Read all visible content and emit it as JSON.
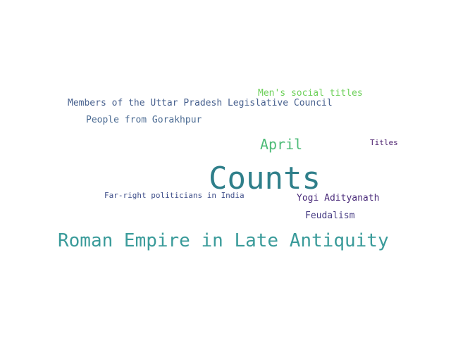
{
  "words": {
    "counts": {
      "text": "Counts",
      "color": "#2f7f8a"
    },
    "roman": {
      "text": "Roman Empire in Late Antiquity",
      "color": "#3a9b9a"
    },
    "april": {
      "text": "April",
      "color": "#4dbb77"
    },
    "mens": {
      "text": "Men's social titles",
      "color": "#6ed05a"
    },
    "members": {
      "text": "Members of the Uttar Pradesh Legislative Council",
      "color": "#47608e"
    },
    "gorakhpur": {
      "text": "People from Gorakhpur",
      "color": "#4a6a92"
    },
    "titles": {
      "text": "Titles",
      "color": "#4b1f6e"
    },
    "farright": {
      "text": "Far-right politicians in India",
      "color": "#3f4f8a"
    },
    "yogi": {
      "text": "Yogi Adityanath",
      "color": "#4a2b7a"
    },
    "feudalism": {
      "text": "Feudalism",
      "color": "#453a82"
    }
  }
}
